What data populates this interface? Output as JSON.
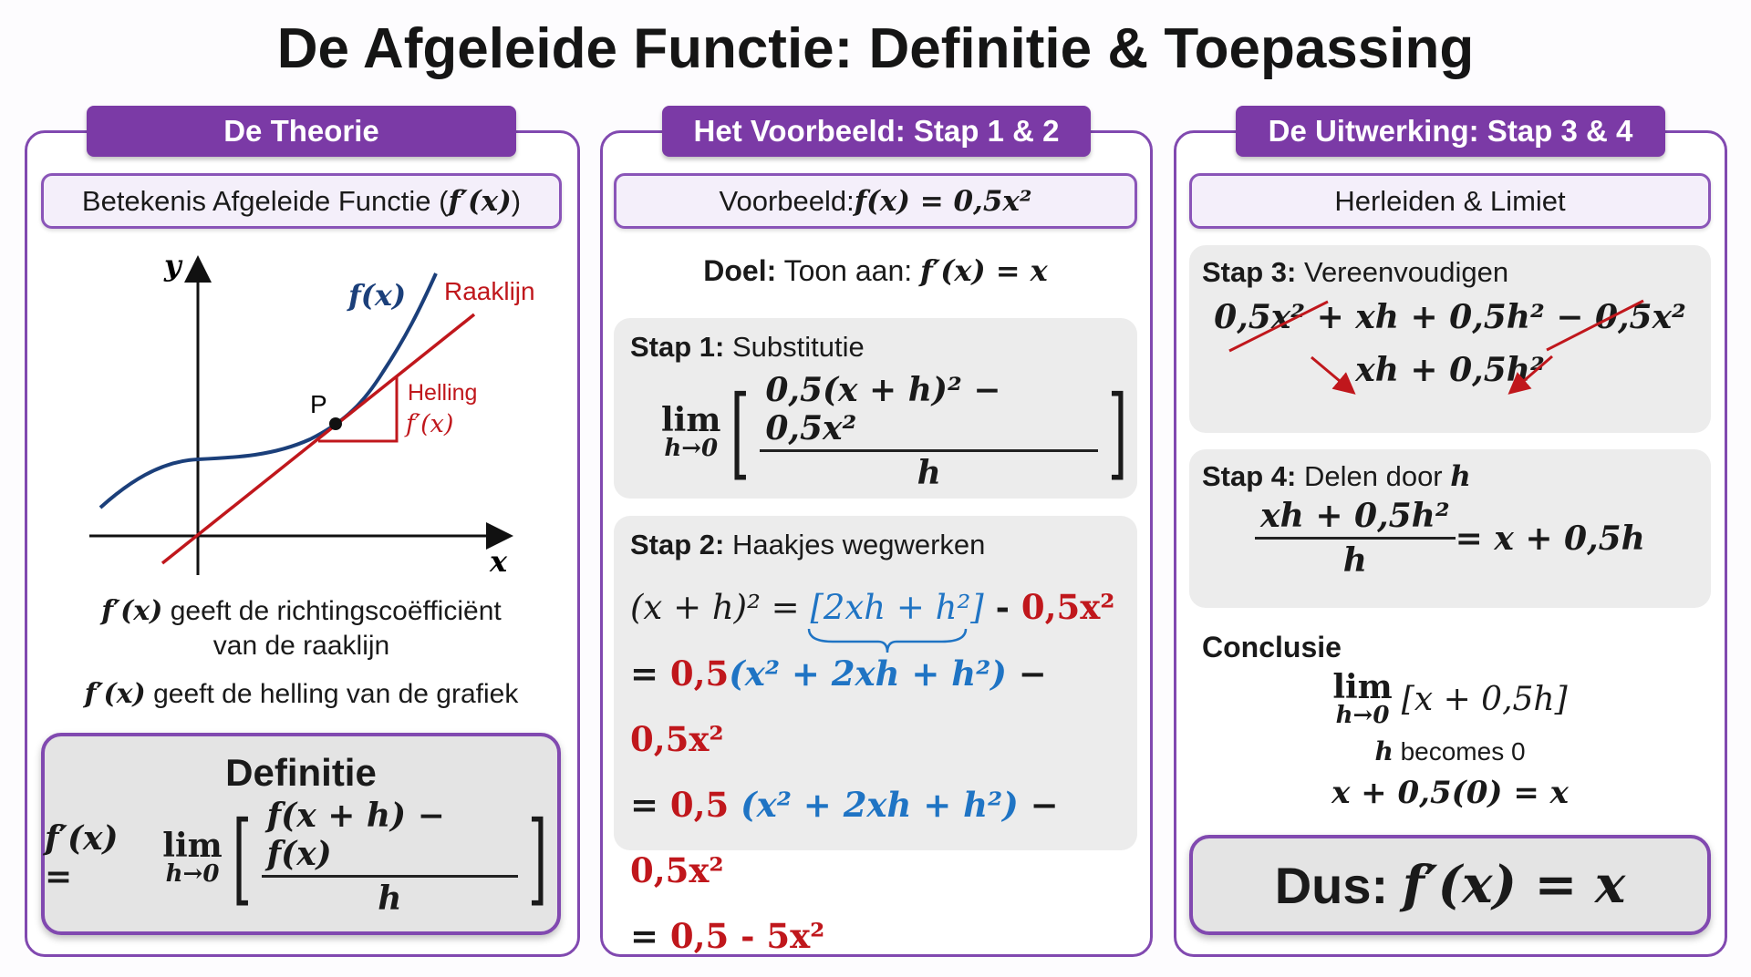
{
  "title": "De Afgeleide Functie: Definitie & Toepassing",
  "colors": {
    "purple": "#7b3aa6",
    "red": "#c0171c",
    "blue": "#1f74c4",
    "curve": "#1b3f7a"
  },
  "left": {
    "tab": "De Theorie",
    "subtitle_text": "Betekenis Afgeleide Functie (",
    "subtitle_math": "f′(x)",
    "subtitle_end": ")",
    "graph": {
      "y_label": "y",
      "x_label": "x",
      "curve_label": "f(x)",
      "tangent_label": "Raaklijn",
      "point_label": "P",
      "slope_label": "Helling",
      "slope_math": "f′(x)"
    },
    "line1_math": "f′(x)",
    "line1_text": " geeft de richtingscoëfficiënt",
    "line2_text": "van de raaklijn",
    "line3_math": "f′(x)",
    "line3_text": " geeft de helling van de grafiek",
    "definition": {
      "heading": "Definitie",
      "lhs": "f′(x) =",
      "lim": "lim",
      "lim_sub": "h→0",
      "num": "f(x + h) − f(x)",
      "den": "h"
    }
  },
  "middle": {
    "tab": "Het Voorbeeld: Stap 1 & 2",
    "subtitle_text": "Voorbeeld: ",
    "subtitle_math": "f(x) = 0,5x²",
    "goal_bold": "Doel:",
    "goal_text": " Toon aan: ",
    "goal_math": "f′(x) = x",
    "step1": {
      "label": "Stap 1:",
      "title": " Substitutie",
      "lim": "lim",
      "lim_sub": "h→0",
      "num": "0,5(x + h)² − 0,5x²",
      "den": "h"
    },
    "step2": {
      "label": "Stap 2:",
      "title": " Haakjes wegwerken",
      "row1": {
        "a": "(x + h)² = ",
        "b": "[2xh + h²]",
        "c": " - ",
        "d": "0,5x²"
      },
      "row2": {
        "a": "= ",
        "b": "0,5",
        "c": "(x² + 2xh + h²)",
        "d": " − ",
        "e": "0,5x²"
      },
      "row3": {
        "a": "= ",
        "b": "0,5 ",
        "c": "(x² + 2xh + h²)",
        "d": " − ",
        "e": "0,5x²"
      },
      "row4": {
        "a": "= ",
        "b": "0,5 - 5x²"
      }
    }
  },
  "right": {
    "tab": "De Uitwerking: Stap 3 & 4",
    "subtitle": "Herleiden & Limiet",
    "step3": {
      "label": "Stap 3:",
      "title": " Vereenvoudigen",
      "t1": "0,5x²",
      "t2": " + xh + 0,5h² − ",
      "t3": "0,5x²",
      "result": "xh + 0,5h²"
    },
    "step4": {
      "label": "Stap 4:",
      "title": " Delen door ",
      "title_math": "h",
      "num": "xh + 0,5h²",
      "den": "h",
      "rhs": "= x + 0,5h"
    },
    "conclusion": {
      "label": "Conclusie",
      "lim": "lim",
      "lim_sub": "h→0",
      "expr": "[x + 0,5h]",
      "note_math": "h",
      "note_text": " becomes 0",
      "final": "x + 0,5(0) = x"
    },
    "result": {
      "bold": "Dus: ",
      "math": "f′(x) = x"
    }
  }
}
